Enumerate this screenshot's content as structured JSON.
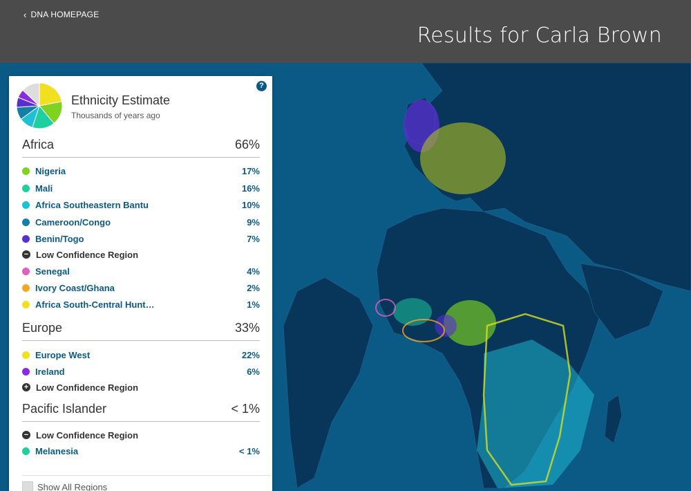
{
  "header": {
    "back_label": "DNA HOMEPAGE",
    "title": "Results for Carla Brown"
  },
  "panel": {
    "title": "Ethnicity Estimate",
    "subtitle": "Thousands of years ago",
    "help_icon": "?",
    "groups": [
      {
        "name": "Africa",
        "percent": "66%",
        "regions": [
          {
            "name": "Nigeria",
            "percent": "17%",
            "color": "#7ed321"
          },
          {
            "name": "Mali",
            "percent": "16%",
            "color": "#1fcfa0"
          },
          {
            "name": "Africa Southeastern Bantu",
            "percent": "10%",
            "color": "#1fbfd6"
          },
          {
            "name": "Cameroon/Congo",
            "percent": "9%",
            "color": "#137fa8"
          },
          {
            "name": "Benin/Togo",
            "percent": "7%",
            "color": "#5a2fd0"
          }
        ],
        "low_confidence_label": "Low Confidence Region",
        "low_confidence_regions": [
          {
            "name": "Senegal",
            "percent": "4%",
            "color": "#e05fbf"
          },
          {
            "name": "Ivory Coast/Ghana",
            "percent": "2%",
            "color": "#f5a623"
          },
          {
            "name": "Africa South-Central Hunt…",
            "percent": "1%",
            "color": "#f0e020"
          }
        ]
      },
      {
        "name": "Europe",
        "percent": "33%",
        "regions": [
          {
            "name": "Europe West",
            "percent": "22%",
            "color": "#f0e020"
          },
          {
            "name": "Ireland",
            "percent": "6%",
            "color": "#8a2be2"
          }
        ],
        "low_confidence_label": "Low Confidence Region"
      },
      {
        "name": "Pacific Islander",
        "percent": "< 1%",
        "low_confidence_label": "Low Confidence Region",
        "low_confidence_regions": [
          {
            "name": "Melanesia",
            "percent": "< 1%",
            "color": "#1fcfa0"
          }
        ]
      }
    ],
    "show_all_label": "Show All Regions"
  },
  "pie_slices": [
    {
      "value": 22,
      "color": "#f0e020"
    },
    {
      "value": 17,
      "color": "#7ed321"
    },
    {
      "value": 16,
      "color": "#1fcfa0"
    },
    {
      "value": 10,
      "color": "#1fbfd6"
    },
    {
      "value": 9,
      "color": "#137fa8"
    },
    {
      "value": 7,
      "color": "#5a2fd0"
    },
    {
      "value": 6,
      "color": "#8a2be2"
    },
    {
      "value": 13,
      "color": "#dddddd"
    }
  ],
  "icons": {
    "back": "chevron-left-icon",
    "help": "help-icon",
    "collapse": "minus-circle-icon",
    "expand": "plus-circle-icon"
  }
}
